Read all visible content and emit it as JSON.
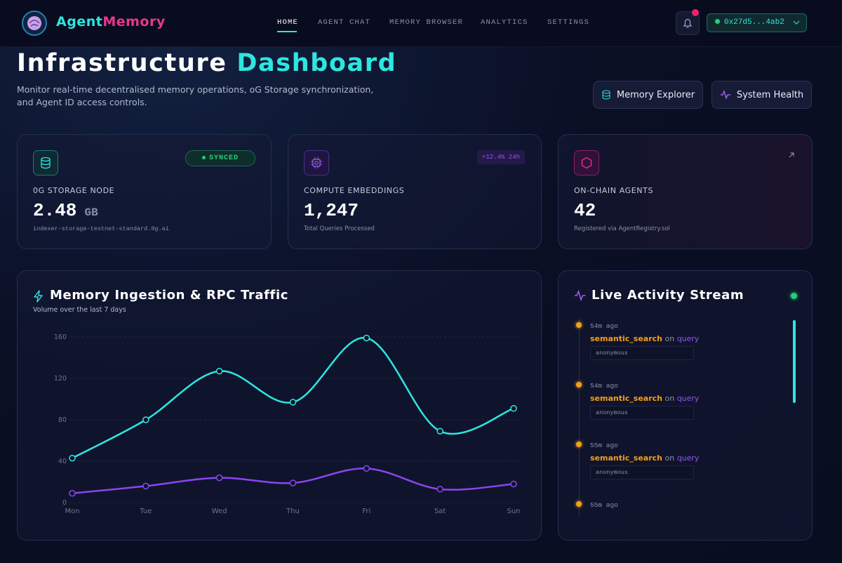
{
  "nav": {
    "brand_first": "Agent",
    "brand_second": "Memory",
    "links": [
      "HOME",
      "AGENT CHAT",
      "MEMORY BROWSER",
      "ANALYTICS",
      "SETTINGS"
    ],
    "wallet": "0x27d5...4ab2"
  },
  "header": {
    "title_first": "Infrastructure",
    "title_second": "Dashboard",
    "subtitle_line1": "Monitor real-time decentralised memory operations, oG Storage synchronization,",
    "subtitle_line2": "and Agent ID access controls.",
    "buttons": [
      "Memory Explorer",
      "System Health"
    ]
  },
  "stats": [
    {
      "label": "0G STORAGE NODE",
      "value": "2.48",
      "unit": "GB",
      "note": "indexer-storage-testnet-standard.0g.ai",
      "badge": "SYNCED"
    },
    {
      "label": "COMPUTE EMBEDDINGS",
      "value": "1,247",
      "note": "Total Queries Processed",
      "badge": "+12.4% 24h"
    },
    {
      "label": "ON-CHAIN AGENTS",
      "value": "42",
      "note": "Registered via AgentRegistry.sol"
    }
  ],
  "traffic_chart": {
    "type": "line",
    "title": "Memory Ingestion & RPC Traffic",
    "subtitle": "Volume over the last 7 days",
    "categories": [
      "Mon",
      "Tue",
      "Wed",
      "Thu",
      "Fri",
      "Sat",
      "Sun"
    ],
    "series": [
      {
        "color": "#2ee6e0",
        "values": [
          43,
          80,
          127,
          97,
          159,
          69,
          91
        ]
      },
      {
        "color": "#8b45f0",
        "values": [
          9,
          16,
          24,
          19,
          33,
          13,
          18
        ]
      }
    ],
    "ylim": [
      0,
      160
    ],
    "yticks": [
      0,
      40,
      80,
      120,
      160
    ],
    "grid": true
  },
  "activity": {
    "title": "Live Activity Stream",
    "events": [
      {
        "time": "54m ago",
        "action": "semantic_search",
        "on": "on",
        "target": "query",
        "user": "anonymous"
      },
      {
        "time": "54m ago",
        "action": "semantic_search",
        "on": "on",
        "target": "query",
        "user": "anonymous"
      },
      {
        "time": "55m ago",
        "action": "semantic_search",
        "on": "on",
        "target": "query",
        "user": "anonymous"
      },
      {
        "time": "55m ago"
      }
    ]
  }
}
